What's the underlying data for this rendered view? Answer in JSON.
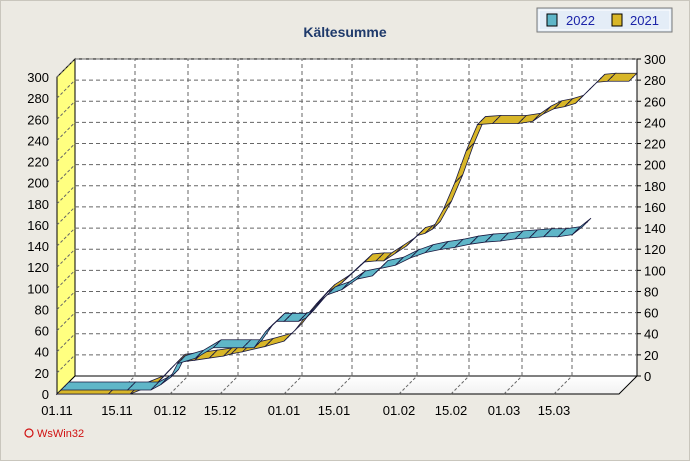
{
  "chart_data": {
    "type": "line",
    "title": "Kältesumme",
    "xlabel": "",
    "ylabel": "",
    "x_tick_labels": [
      "01.11",
      "15.11",
      "01.12",
      "15.12",
      "01.01",
      "15.01",
      "01.02",
      "15.02",
      "01.03",
      "15.03"
    ],
    "y_left_ticks": [
      0,
      20,
      40,
      60,
      80,
      100,
      120,
      140,
      160,
      180,
      200,
      220,
      240,
      260,
      280,
      300
    ],
    "y_right_ticks": [
      0,
      20,
      40,
      60,
      80,
      100,
      120,
      140,
      160,
      180,
      200,
      220,
      240,
      260,
      280,
      300
    ],
    "ylim": [
      0,
      300
    ],
    "x_range_days": [
      0,
      150
    ],
    "grid": true,
    "legend_position": "top-right",
    "series": [
      {
        "name": "2022",
        "color": "#5fb6c8",
        "points": [
          [
            0,
            0
          ],
          [
            16,
            0
          ],
          [
            23,
            0
          ],
          [
            26,
            5
          ],
          [
            29,
            12
          ],
          [
            31,
            25
          ],
          [
            36,
            30
          ],
          [
            41,
            40
          ],
          [
            49,
            40
          ],
          [
            52,
            40
          ],
          [
            55,
            55
          ],
          [
            58,
            65
          ],
          [
            60,
            65
          ],
          [
            64,
            65
          ],
          [
            66,
            68
          ],
          [
            69,
            80
          ],
          [
            72,
            90
          ],
          [
            76,
            95
          ],
          [
            80,
            105
          ],
          [
            84,
            108
          ],
          [
            86,
            115
          ],
          [
            90,
            118
          ],
          [
            94,
            125
          ],
          [
            98,
            130
          ],
          [
            102,
            133
          ],
          [
            106,
            135
          ],
          [
            110,
            138
          ],
          [
            114,
            140
          ],
          [
            118,
            141
          ],
          [
            122,
            143
          ],
          [
            126,
            144
          ],
          [
            130,
            145
          ],
          [
            134,
            145
          ],
          [
            138,
            147
          ],
          [
            141,
            155
          ]
        ]
      },
      {
        "name": "2021",
        "color": "#d8b628",
        "points": [
          [
            0,
            0
          ],
          [
            12,
            0
          ],
          [
            18,
            0
          ],
          [
            22,
            5
          ],
          [
            26,
            10
          ],
          [
            29,
            20
          ],
          [
            32,
            30
          ],
          [
            37,
            32
          ],
          [
            41,
            34
          ],
          [
            45,
            36
          ],
          [
            47,
            38
          ],
          [
            50,
            40
          ],
          [
            56,
            45
          ],
          [
            61,
            50
          ],
          [
            64,
            60
          ],
          [
            67,
            73
          ],
          [
            70,
            85
          ],
          [
            73,
            96
          ],
          [
            77,
            105
          ],
          [
            80,
            115
          ],
          [
            83,
            125
          ],
          [
            86,
            126
          ],
          [
            88,
            126
          ],
          [
            91,
            133
          ],
          [
            94,
            140
          ],
          [
            97,
            150
          ],
          [
            99,
            152
          ],
          [
            101,
            156
          ],
          [
            104,
            175
          ],
          [
            107,
            200
          ],
          [
            110,
            230
          ],
          [
            113,
            255
          ],
          [
            117,
            256
          ],
          [
            124,
            256
          ],
          [
            128,
            258
          ],
          [
            131,
            265
          ],
          [
            134,
            270
          ],
          [
            137,
            272
          ],
          [
            140,
            275
          ],
          [
            143,
            285
          ],
          [
            146,
            295
          ],
          [
            149,
            296
          ],
          [
            155,
            296
          ]
        ]
      }
    ]
  }
}
